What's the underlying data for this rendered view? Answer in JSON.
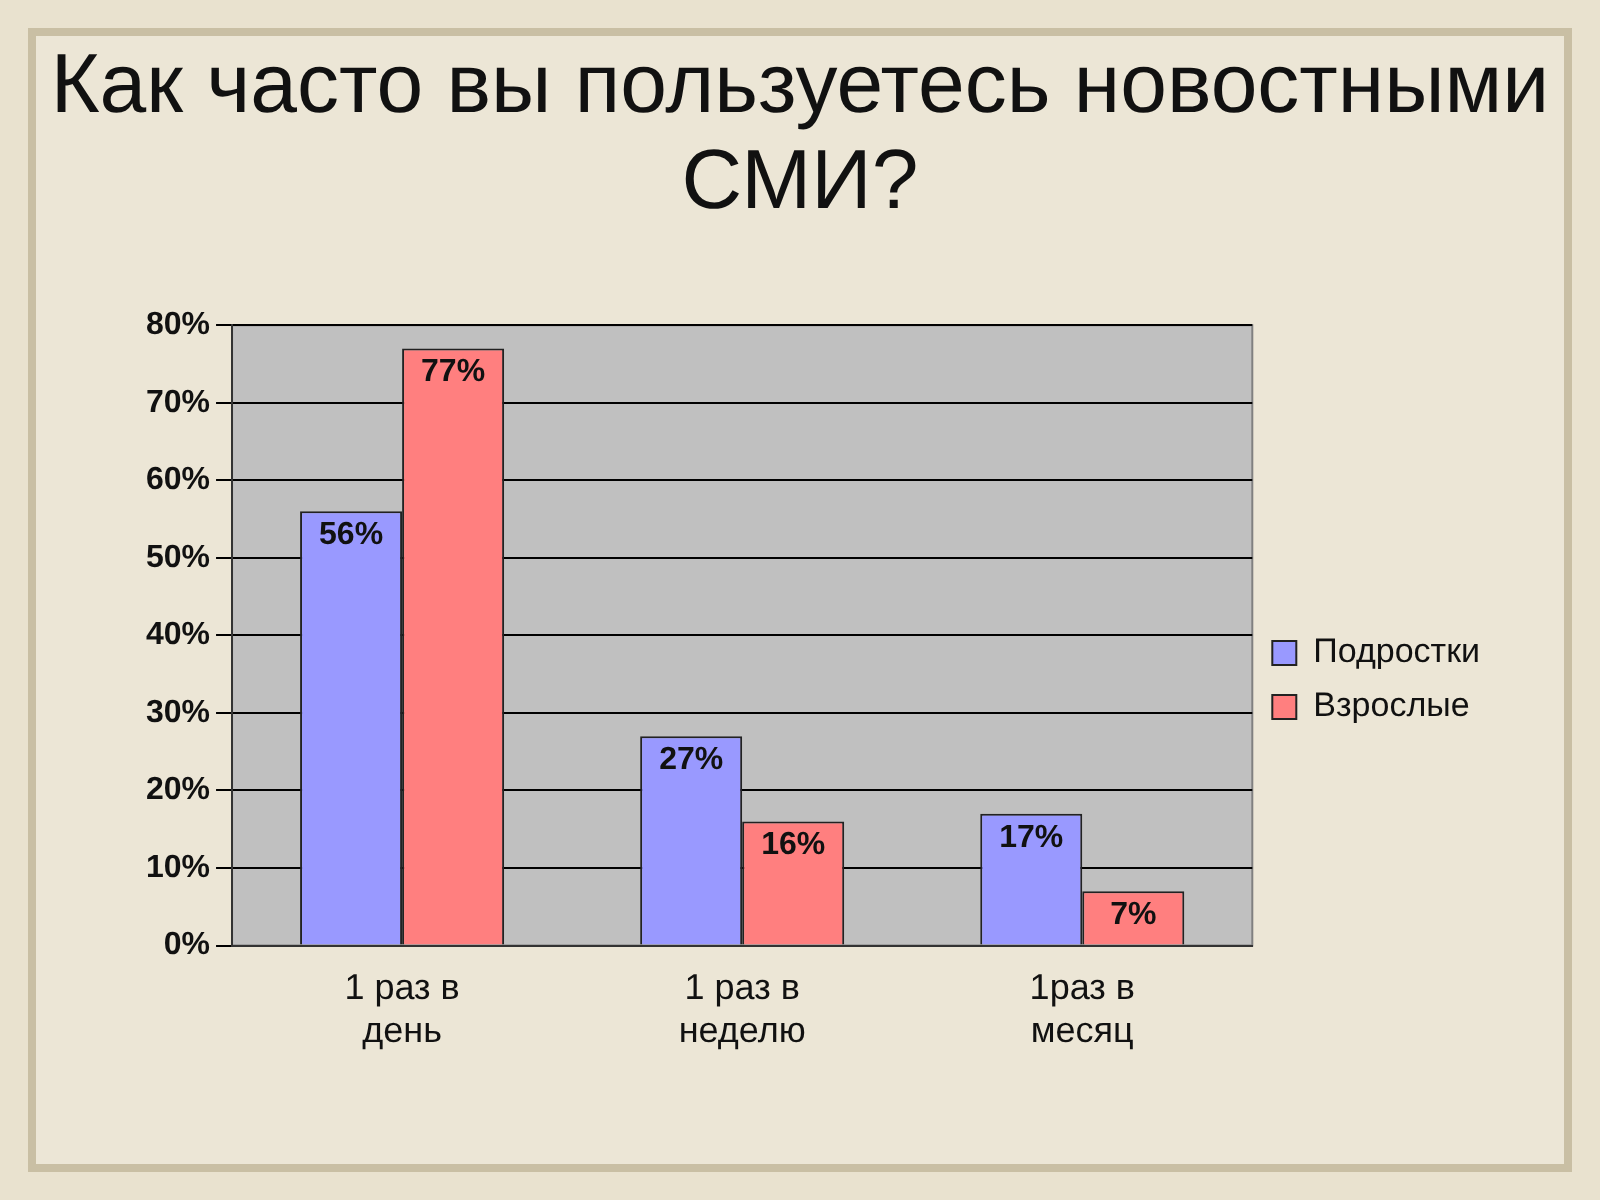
{
  "chart_data": {
    "type": "bar",
    "title": "Как часто вы пользуетесь новостными СМИ?",
    "categories": [
      "1 раз в день",
      "1 раз в неделю",
      "1раз в месяц"
    ],
    "series": [
      {
        "name": "Подростки",
        "color": "#9999ff",
        "values": [
          56,
          27,
          17
        ],
        "value_labels": [
          "56%",
          "27%",
          "17%"
        ]
      },
      {
        "name": "Взрослые",
        "color": "#ff7f7f",
        "values": [
          77,
          16,
          7
        ],
        "value_labels": [
          "77%",
          "16%",
          "7%"
        ]
      }
    ],
    "ylim": [
      0,
      80
    ],
    "yticks": [
      {
        "value": 0,
        "label": "0%"
      },
      {
        "value": 10,
        "label": "10%"
      },
      {
        "value": 20,
        "label": "20%"
      },
      {
        "value": 30,
        "label": "30%"
      },
      {
        "value": 40,
        "label": "40%"
      },
      {
        "value": 50,
        "label": "50%"
      },
      {
        "value": 60,
        "label": "60%"
      },
      {
        "value": 70,
        "label": "70%"
      },
      {
        "value": 80,
        "label": "80%"
      }
    ],
    "grid": "y",
    "legend": "right"
  }
}
